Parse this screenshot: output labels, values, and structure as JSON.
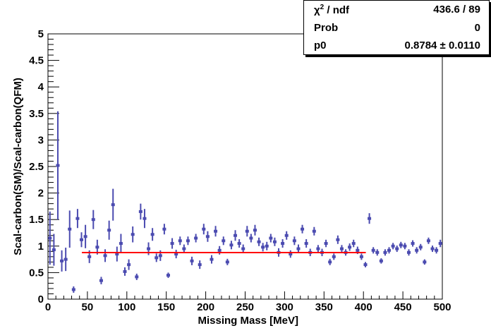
{
  "chart_data": {
    "type": "scatter",
    "xlabel": "Missing Mass [MeV]",
    "ylabel": "Scal-carbon(SM)/Scal-carbon(QFM)",
    "xlim": [
      0,
      500
    ],
    "ylim": [
      0,
      5
    ],
    "xticks": [
      "0",
      "50",
      "100",
      "150",
      "200",
      "250",
      "300",
      "350",
      "400",
      "450",
      "500"
    ],
    "yticks": [
      "0",
      "0.5",
      "1",
      "1.5",
      "2",
      "2.5",
      "3",
      "3.5",
      "4",
      "4.5",
      "5"
    ],
    "grid": false,
    "marker_color": "#4b4bb0",
    "series": [
      {
        "style": "points-with-error-bars",
        "points": [
          [
            2.5,
            1.15,
            0.5
          ],
          [
            7.5,
            0.93,
            0.3
          ],
          [
            12.5,
            2.52,
            1.02
          ],
          [
            17.5,
            0.72,
            0.2
          ],
          [
            22.5,
            0.75,
            0.22
          ],
          [
            27.5,
            1.32,
            0.35
          ],
          [
            32.5,
            0.18,
            0.06
          ],
          [
            37.5,
            1.52,
            0.18
          ],
          [
            42.5,
            1.12,
            0.14
          ],
          [
            47.5,
            1.18,
            0.22
          ],
          [
            52.5,
            0.8,
            0.12
          ],
          [
            57.5,
            1.5,
            0.18
          ],
          [
            62.5,
            0.98,
            0.14
          ],
          [
            67.5,
            0.35,
            0.07
          ],
          [
            72.5,
            0.82,
            0.12
          ],
          [
            77.5,
            1.3,
            0.18
          ],
          [
            82.5,
            1.78,
            0.3
          ],
          [
            87.5,
            0.85,
            0.14
          ],
          [
            92.5,
            1.05,
            0.18
          ],
          [
            97.5,
            0.52,
            0.08
          ],
          [
            102.5,
            0.65,
            0.1
          ],
          [
            107.5,
            1.22,
            0.15
          ],
          [
            112.5,
            0.42,
            0.06
          ],
          [
            117.5,
            1.65,
            0.15
          ],
          [
            122.5,
            1.52,
            0.18
          ],
          [
            127.5,
            0.95,
            0.12
          ],
          [
            132.5,
            1.22,
            0.12
          ],
          [
            137.5,
            0.78,
            0.08
          ],
          [
            142.5,
            0.82,
            0.1
          ],
          [
            147.5,
            1.32,
            0.1
          ],
          [
            152.5,
            0.45,
            0.05
          ],
          [
            157.5,
            1.05,
            0.1
          ],
          [
            162.5,
            0.85,
            0.08
          ],
          [
            167.5,
            1.1,
            0.08
          ],
          [
            172.5,
            0.95,
            0.08
          ],
          [
            177.5,
            1.1,
            0.08
          ],
          [
            182.5,
            0.72,
            0.08
          ],
          [
            187.5,
            1.15,
            0.08
          ],
          [
            192.5,
            0.65,
            0.08
          ],
          [
            197.5,
            1.32,
            0.1
          ],
          [
            202.5,
            1.18,
            0.1
          ],
          [
            207.5,
            0.75,
            0.08
          ],
          [
            212.5,
            1.28,
            0.1
          ],
          [
            217.5,
            0.92,
            0.08
          ],
          [
            222.5,
            1.1,
            0.08
          ],
          [
            227.5,
            0.7,
            0.06
          ],
          [
            232.5,
            1.02,
            0.08
          ],
          [
            237.5,
            1.2,
            0.1
          ],
          [
            242.5,
            1.05,
            0.08
          ],
          [
            247.5,
            0.95,
            0.08
          ],
          [
            252.5,
            1.28,
            0.1
          ],
          [
            257.5,
            1.15,
            0.08
          ],
          [
            262.5,
            1.3,
            0.1
          ],
          [
            267.5,
            1.08,
            0.08
          ],
          [
            272.5,
            0.98,
            0.08
          ],
          [
            277.5,
            1.0,
            0.08
          ],
          [
            282.5,
            1.15,
            0.08
          ],
          [
            287.5,
            1.08,
            0.08
          ],
          [
            292.5,
            0.88,
            0.08
          ],
          [
            297.5,
            1.05,
            0.08
          ],
          [
            302.5,
            1.2,
            0.08
          ],
          [
            307.5,
            0.85,
            0.07
          ],
          [
            312.5,
            1.1,
            0.08
          ],
          [
            317.5,
            0.95,
            0.08
          ],
          [
            322.5,
            1.32,
            0.08
          ],
          [
            327.5,
            1.05,
            0.08
          ],
          [
            332.5,
            0.88,
            0.07
          ],
          [
            337.5,
            1.28,
            0.08
          ],
          [
            342.5,
            0.95,
            0.07
          ],
          [
            347.5,
            0.88,
            0.07
          ],
          [
            352.5,
            1.05,
            0.07
          ],
          [
            357.5,
            0.7,
            0.06
          ],
          [
            362.5,
            0.8,
            0.06
          ],
          [
            367.5,
            1.12,
            0.08
          ],
          [
            372.5,
            0.95,
            0.07
          ],
          [
            377.5,
            0.88,
            0.06
          ],
          [
            382.5,
            0.98,
            0.07
          ],
          [
            387.5,
            1.05,
            0.07
          ],
          [
            392.5,
            0.92,
            0.07
          ],
          [
            397.5,
            0.8,
            0.06
          ],
          [
            402.5,
            0.65,
            0.05
          ],
          [
            407.5,
            1.52,
            0.1
          ],
          [
            412.5,
            0.92,
            0.06
          ],
          [
            417.5,
            0.88,
            0.06
          ],
          [
            422.5,
            0.72,
            0.05
          ],
          [
            427.5,
            0.88,
            0.06
          ],
          [
            432.5,
            0.92,
            0.06
          ],
          [
            437.5,
            1.0,
            0.06
          ],
          [
            442.5,
            0.95,
            0.06
          ],
          [
            447.5,
            1.02,
            0.06
          ],
          [
            452.5,
            1.0,
            0.06
          ],
          [
            457.5,
            0.88,
            0.06
          ],
          [
            462.5,
            1.05,
            0.06
          ],
          [
            467.5,
            0.92,
            0.06
          ],
          [
            472.5,
            0.98,
            0.06
          ],
          [
            477.5,
            0.7,
            0.05
          ],
          [
            482.5,
            1.1,
            0.06
          ],
          [
            487.5,
            0.95,
            0.06
          ],
          [
            492.5,
            0.92,
            0.06
          ],
          [
            497.5,
            1.05,
            0.07
          ]
        ]
      }
    ],
    "fit": {
      "x": [
        43,
        403
      ],
      "y": 0.8784,
      "color": "#ff0000"
    },
    "stats": [
      {
        "name_prefix": "χ",
        "name_sup": "2",
        "name_suffix": " / ndf",
        "value": "436.6 / 89"
      },
      {
        "name_prefix": "Prob",
        "name_sup": "",
        "name_suffix": "",
        "value": "0"
      },
      {
        "name_prefix": "p0",
        "name_sup": "",
        "name_suffix": "",
        "value": "0.8784 ± 0.0110"
      }
    ]
  }
}
